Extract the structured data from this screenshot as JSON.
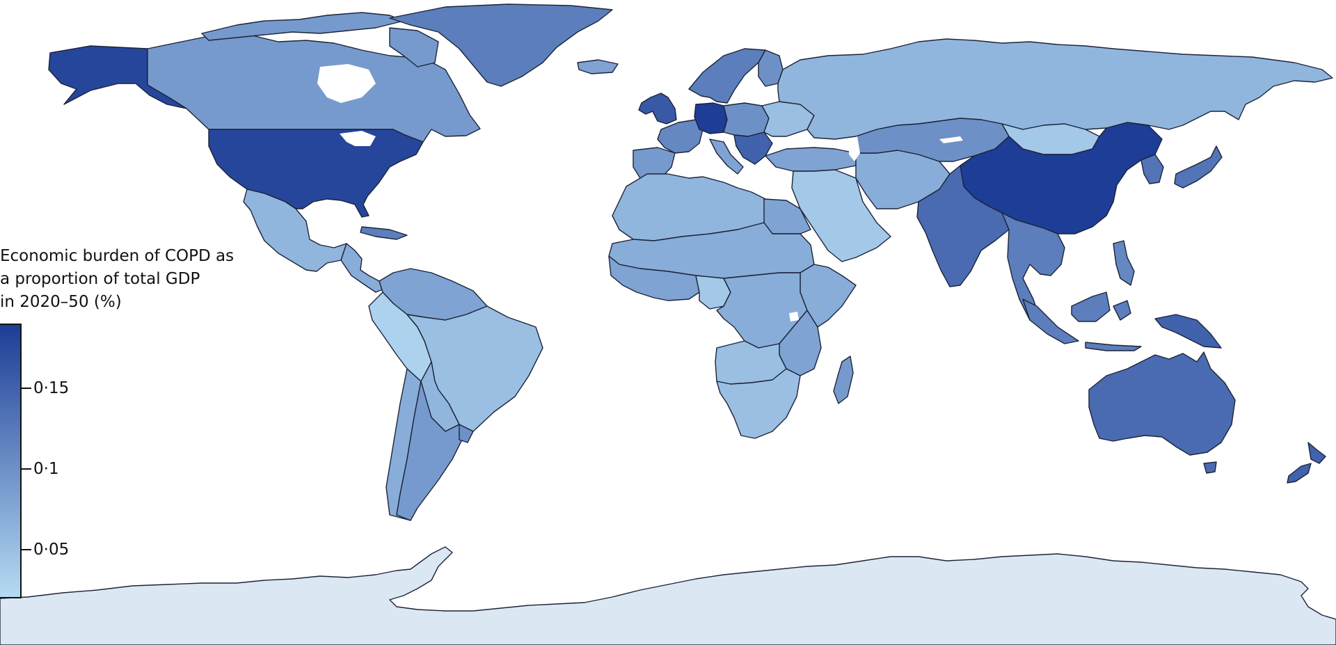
{
  "legend": {
    "title_lines": [
      "Economic burden of COPD as",
      "a proportion of total GDP",
      "in 2020–50 (%)"
    ],
    "scale_min": 0.02,
    "scale_max": 0.19,
    "ticks": [
      {
        "value": 0.15,
        "label": "0·15"
      },
      {
        "value": 0.1,
        "label": "0·1"
      },
      {
        "value": 0.05,
        "label": "0·05"
      }
    ],
    "color_low": "#b5dbf3",
    "color_high": "#1d3d96"
  },
  "colors": {
    "ocean": "#ffffff",
    "border": "#1c2338",
    "antarctica": "#dce7f4",
    "lake": "#ffffff"
  },
  "regions": {
    "usa": 0.18,
    "canada": 0.09,
    "alaska": 0.18,
    "greenland": 0.12,
    "mexico": 0.06,
    "central_america": 0.07,
    "caribbean": 0.12,
    "colombia_venezuela": 0.08,
    "brazil": 0.05,
    "peru_ecuador": 0.03,
    "bolivia_paraguay": 0.06,
    "chile": 0.07,
    "argentina": 0.09,
    "uruguay": 0.1,
    "iceland": 0.08,
    "uk_ireland": 0.16,
    "scandinavia": 0.12,
    "finland": 0.1,
    "western_europe": 0.11,
    "germany_central": 0.19,
    "eastern_europe": 0.1,
    "balkans": 0.15,
    "iberia": 0.09,
    "italy": 0.08,
    "ukraine_belarus": 0.05,
    "russia": 0.06,
    "turkey_caucasus": 0.08,
    "middle_east": 0.04,
    "iran_afghanistan": 0.07,
    "central_asia": 0.1,
    "mongolia": 0.04,
    "china": 0.19,
    "korea_japan": 0.13,
    "south_asia": 0.14,
    "southeast_asia": 0.12,
    "indonesia": 0.12,
    "philippines": 0.11,
    "papua": 0.15,
    "australia": 0.14,
    "new_zealand": 0.15,
    "north_africa": 0.06,
    "egypt": 0.08,
    "sahel": 0.07,
    "west_africa": 0.08,
    "nigeria": 0.04,
    "central_africa": 0.07,
    "east_africa": 0.08,
    "horn_africa": 0.07,
    "southern_africa": 0.05,
    "angola_zambia": 0.05,
    "madagascar": 0.09,
    "antarctica": null
  }
}
